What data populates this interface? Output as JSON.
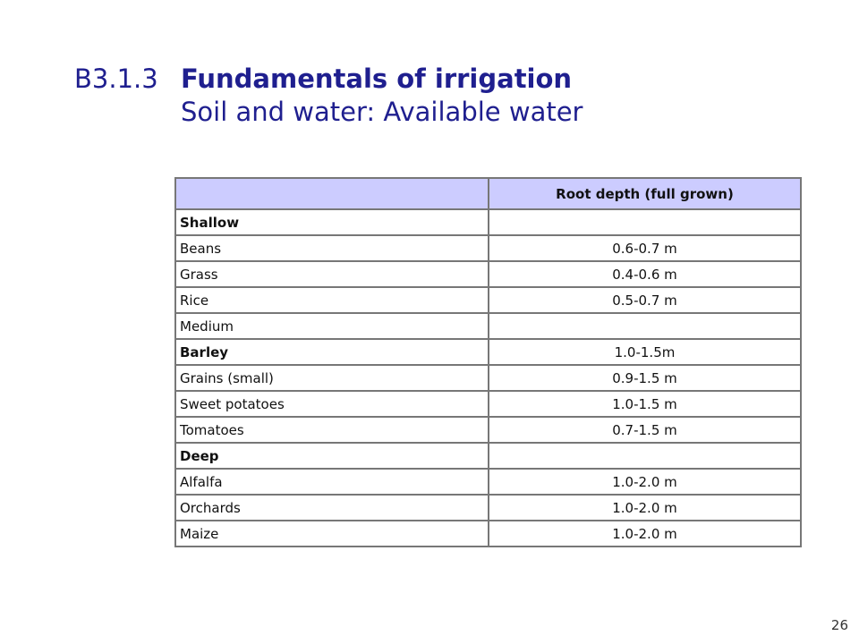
{
  "title": {
    "code": "B3.1.3",
    "main": "Fundamentals of irrigation",
    "subtitle": "Soil and water: Available water"
  },
  "table": {
    "headers": [
      "",
      "Root depth (full grown)"
    ],
    "rows": [
      {
        "crop": "Shallow",
        "depth": "",
        "bold": true
      },
      {
        "crop": "Beans",
        "depth": "0.6-0.7 m",
        "bold": false
      },
      {
        "crop": "Grass",
        "depth": "0.4-0.6 m",
        "bold": false
      },
      {
        "crop": "Rice",
        "depth": "0.5-0.7 m",
        "bold": false
      },
      {
        "crop": "Medium",
        "depth": "",
        "bold": false
      },
      {
        "crop": "Barley",
        "depth": "1.0-1.5m",
        "bold": true
      },
      {
        "crop": "Grains (small)",
        "depth": "0.9-1.5 m",
        "bold": false
      },
      {
        "crop": "Sweet potatoes",
        "depth": "1.0-1.5 m",
        "bold": false
      },
      {
        "crop": "Tomatoes",
        "depth": "0.7-1.5 m",
        "bold": false
      },
      {
        "crop": "Deep",
        "depth": "",
        "bold": true
      },
      {
        "crop": "Alfalfa",
        "depth": "1.0-2.0 m",
        "bold": false
      },
      {
        "crop": "Orchards",
        "depth": "1.0-2.0 m",
        "bold": false
      },
      {
        "crop": "Maize",
        "depth": "1.0-2.0 m",
        "bold": false
      }
    ]
  },
  "page_number": "26",
  "colors": {
    "title": "#1f1f8f",
    "header_bg": "#ccccff",
    "border": "#777777"
  }
}
